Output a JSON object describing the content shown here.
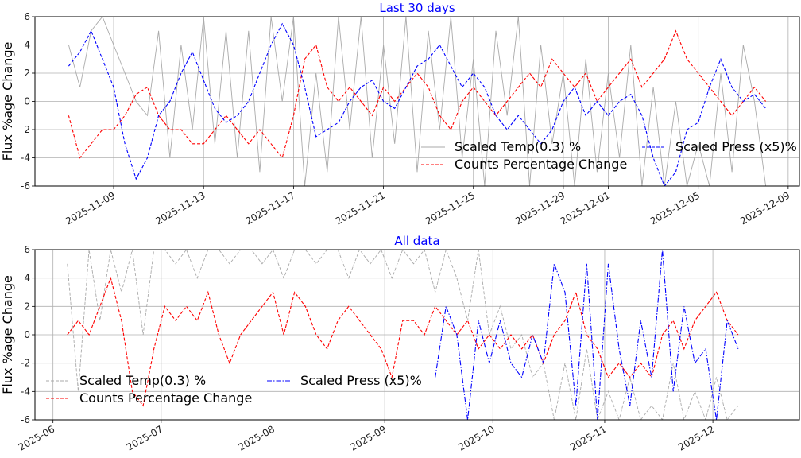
{
  "chart_data": [
    {
      "type": "line",
      "title": "Last 30 days",
      "ylabel": "Flux %age Change",
      "xlabel": "",
      "ylim": [
        -6,
        6
      ],
      "yticks": [
        -6,
        -4,
        -2,
        0,
        2,
        4,
        6
      ],
      "xlim": [
        "2025-11-05T12:00",
        "2025-12-09T12:00"
      ],
      "xticks": [
        "2025-11-09",
        "2025-11-13",
        "2025-11-17",
        "2025-11-21",
        "2025-11-25",
        "2025-11-29",
        "2025-12-01",
        "2025-12-05",
        "2025-12-09"
      ],
      "grid": true,
      "legend": {
        "placement": "lower-right",
        "entries": [
          "Scaled Temp(0.3) %",
          "Counts Percentage Change",
          "Scaled Press (x5)%"
        ]
      },
      "x_start": "2025-11-07",
      "step_days": 0.5,
      "series": [
        {
          "name": "Scaled Temp(0.3) %",
          "color": "#aaaaaa",
          "style": "solid",
          "values": [
            4,
            1,
            5,
            6,
            4,
            2,
            0,
            -1,
            5,
            -4,
            4,
            -2,
            6,
            -3,
            5,
            -4,
            5,
            -5,
            6,
            0,
            6,
            -6,
            2,
            -5,
            6,
            -2,
            6,
            -4,
            4,
            -3,
            6,
            -5,
            5,
            -2,
            6,
            -4,
            3,
            -6,
            5,
            -1,
            6,
            -6,
            4,
            -3,
            2,
            -6,
            3,
            -5,
            2,
            -4,
            4,
            -6,
            1,
            -6,
            0,
            -6,
            -3,
            -6,
            2,
            -5,
            4,
            0,
            -6
          ]
        },
        {
          "name": "Counts Percentage Change",
          "color": "#ff0000",
          "style": "dashed",
          "values": [
            -1,
            -4,
            -3,
            -2,
            -2,
            -1,
            0.5,
            1,
            -1,
            -2,
            -2,
            -3,
            -3,
            -2,
            -1,
            -2,
            -3,
            -2,
            -3,
            -4,
            -1,
            3,
            4,
            1,
            0,
            1,
            0,
            -1,
            1,
            0,
            1,
            2,
            1,
            -1,
            -2,
            0,
            1,
            0,
            -1,
            0,
            1,
            2,
            1,
            3,
            2,
            1,
            2,
            0,
            1,
            2,
            3,
            1,
            2,
            3,
            5,
            3,
            2,
            1,
            0,
            -1,
            0,
            1,
            0
          ]
        },
        {
          "name": "Scaled Press (x5)%",
          "color": "#0000ff",
          "style": "dashed",
          "values": [
            2.5,
            3.5,
            5,
            3,
            1,
            -3,
            -5.5,
            -4,
            -1,
            0,
            2,
            3.5,
            1.5,
            -0.5,
            -1.5,
            -1,
            0,
            2,
            4,
            5.5,
            4,
            1,
            -2.5,
            -2,
            -1.5,
            0,
            1,
            1.5,
            0,
            -0.5,
            1,
            2.5,
            3,
            4,
            2.5,
            1,
            2,
            1,
            -1,
            -2,
            -1,
            -2,
            -3,
            -2,
            0,
            1,
            -1,
            0,
            -1,
            0,
            0.5,
            -1,
            -4,
            -6,
            -5,
            -2,
            -1.5,
            1,
            3,
            1,
            0,
            0.5,
            -0.5
          ]
        }
      ]
    },
    {
      "type": "line",
      "title": "All data",
      "ylabel": "Flux %age Change",
      "xlabel": "",
      "ylim": [
        -6,
        6
      ],
      "yticks": [
        -6,
        -4,
        -2,
        0,
        2,
        4,
        6
      ],
      "xlim": [
        "2025-05-27",
        "2025-12-25"
      ],
      "xticks": [
        "2025-06",
        "2025-07",
        "2025-08",
        "2025-09",
        "2025-10",
        "2025-11",
        "2025-12"
      ],
      "grid": true,
      "legend": {
        "placement": "lower-left",
        "entries": [
          "Scaled Temp(0.3) %",
          "Counts Percentage Change",
          "Scaled Press (x5)%"
        ]
      },
      "step_days": 3,
      "series": [
        {
          "name": "Scaled Temp(0.3) %",
          "color": "#aaaaaa",
          "style": "dashed",
          "x_start": "2025-06-05",
          "values": [
            5,
            -4,
            6,
            1,
            6,
            3,
            6,
            0,
            6,
            6,
            5,
            6,
            4,
            6,
            6,
            5,
            6,
            6,
            5,
            6,
            4,
            6,
            6,
            5,
            6,
            6,
            4,
            6,
            5,
            6,
            4,
            6,
            5,
            6,
            3,
            6,
            4,
            1,
            6,
            0,
            2,
            -1,
            0,
            -3,
            -2,
            -6,
            -2,
            -6,
            -1,
            -6,
            -4,
            -6,
            -3,
            -6,
            -5,
            -6,
            -2,
            -6,
            -4,
            -6,
            -3,
            -6,
            -5
          ]
        },
        {
          "name": "Counts Percentage Change",
          "color": "#ff0000",
          "style": "dashed",
          "x_start": "2025-06-05",
          "values": [
            0,
            1,
            0,
            2,
            4,
            1,
            -4,
            -5,
            -1,
            2,
            1,
            2,
            1,
            3,
            0,
            -2,
            0,
            1,
            2,
            3,
            0,
            3,
            2,
            0,
            -1,
            1,
            2,
            1,
            0,
            -1,
            -3,
            1,
            1,
            0,
            2,
            1,
            0,
            1,
            -1,
            0,
            -1,
            0,
            -1,
            0,
            -2,
            0,
            1,
            3,
            0,
            -1,
            -3,
            -2,
            -3,
            -2,
            -3,
            0,
            1,
            -1,
            1,
            2,
            3,
            1,
            0
          ]
        },
        {
          "name": "Scaled Press (x5)%",
          "color": "#0000ff",
          "style": "dashdot",
          "x_start": "2025-09-15",
          "values": [
            -3,
            2,
            0,
            -6,
            1,
            -2,
            1,
            -2,
            -3,
            0,
            -2,
            5,
            3,
            -5,
            5,
            -6,
            5,
            -1,
            -5,
            1,
            -3,
            6,
            -4,
            2,
            -2,
            -1,
            -6,
            1,
            -1
          ]
        }
      ]
    }
  ]
}
